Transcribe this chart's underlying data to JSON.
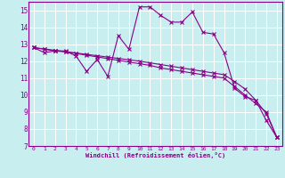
{
  "xlabel": "Windchill (Refroidissement éolien,°C)",
  "background_color": "#c8eef0",
  "grid_color": "#ffffff",
  "line_color": "#880088",
  "xlim": [
    -0.5,
    23.5
  ],
  "ylim": [
    7,
    15.5
  ],
  "yticks": [
    7,
    8,
    9,
    10,
    11,
    12,
    13,
    14,
    15
  ],
  "xticks": [
    0,
    1,
    2,
    3,
    4,
    5,
    6,
    7,
    8,
    9,
    10,
    11,
    12,
    13,
    14,
    15,
    16,
    17,
    18,
    19,
    20,
    21,
    22,
    23
  ],
  "series1_x": [
    0,
    1,
    2,
    3,
    4,
    5,
    6,
    7,
    8,
    9,
    10,
    11,
    12,
    13,
    14,
    15,
    16,
    17,
    18,
    19,
    20,
    21,
    22,
    23
  ],
  "series1_y": [
    12.8,
    12.5,
    12.6,
    12.6,
    12.3,
    11.4,
    12.1,
    11.1,
    13.5,
    12.7,
    15.2,
    15.2,
    14.7,
    14.3,
    14.3,
    14.9,
    13.7,
    13.6,
    12.5,
    10.4,
    9.9,
    9.7,
    8.5,
    7.5
  ],
  "series2_x": [
    0,
    1,
    2,
    3,
    4,
    5,
    6,
    7,
    8,
    9,
    10,
    11,
    12,
    13,
    14,
    15,
    16,
    17,
    18,
    19,
    20,
    21,
    22,
    23
  ],
  "series2_y": [
    12.8,
    12.7,
    12.6,
    12.55,
    12.45,
    12.35,
    12.25,
    12.15,
    12.05,
    11.95,
    11.85,
    11.75,
    11.6,
    11.5,
    11.4,
    11.3,
    11.2,
    11.1,
    11.0,
    10.5,
    10.0,
    9.5,
    9.0,
    7.5
  ],
  "series3_x": [
    0,
    1,
    2,
    3,
    4,
    5,
    6,
    7,
    8,
    9,
    10,
    11,
    12,
    13,
    14,
    15,
    16,
    17,
    18,
    19,
    20,
    21,
    22,
    23
  ],
  "series3_y": [
    12.8,
    12.72,
    12.64,
    12.56,
    12.48,
    12.4,
    12.32,
    12.24,
    12.16,
    12.08,
    12.0,
    11.9,
    11.8,
    11.7,
    11.6,
    11.5,
    11.4,
    11.3,
    11.2,
    10.8,
    10.35,
    9.7,
    8.9,
    7.5
  ]
}
